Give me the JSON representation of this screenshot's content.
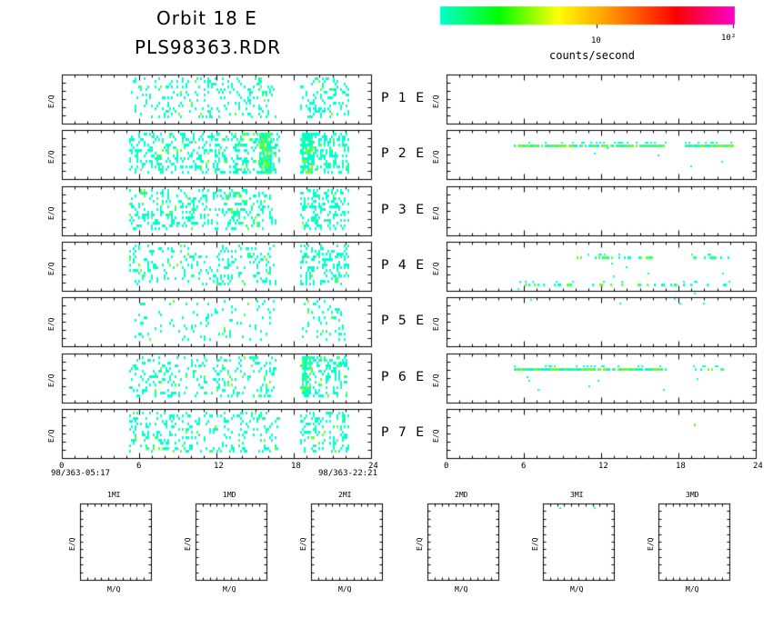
{
  "header": {
    "title": "Orbit 18 E",
    "subtitle": "PLS98363.RDR"
  },
  "colorbar": {
    "tick_labels": [
      "10",
      "10²"
    ],
    "label": "counts/second",
    "stops": [
      "#00ffcc",
      "#00ff00",
      "#ffff00",
      "#ff8800",
      "#ff0000",
      "#ff00cc"
    ]
  },
  "colors": {
    "low": "#00ffcc",
    "mid": "#66ff33",
    "high": "#ccff00"
  },
  "panels": {
    "ylabel": "E/Q",
    "labels": [
      "P 1 E",
      "P 2 E",
      "P 3 E",
      "P 4 E",
      "P 5 E",
      "P 6 E",
      "P 7 E"
    ]
  },
  "time_axis": {
    "ticks": [
      "0",
      "6",
      "12",
      "18",
      "24"
    ],
    "start_label": "98/363-05:17",
    "end_label": "98/363-22:21"
  },
  "mass_panels": {
    "titles": [
      "1MI",
      "1MD",
      "2MI",
      "2MD",
      "3MI",
      "3MD"
    ],
    "xlabel": "M/Q",
    "ylabel": "E/Q"
  },
  "chart_data": [
    {
      "type": "heatmap",
      "name": "left-spectrograms",
      "x_range_hours": [
        0,
        24
      ],
      "rows": [
        {
          "segments": [
            [
              5.2,
              16.5,
              0.3
            ],
            [
              18.5,
              22.2,
              0.45
            ]
          ],
          "highlights": []
        },
        {
          "segments": [
            [
              5.2,
              16.8,
              0.55
            ],
            [
              18.5,
              22.2,
              0.6
            ]
          ],
          "highlights": [
            [
              15.3,
              16.2
            ],
            [
              18.6,
              19.4
            ]
          ]
        },
        {
          "segments": [
            [
              5.2,
              16.5,
              0.45
            ],
            [
              18.5,
              22.2,
              0.55
            ]
          ],
          "highlights": []
        },
        {
          "segments": [
            [
              5.2,
              16.5,
              0.35
            ],
            [
              18.5,
              22.2,
              0.5
            ]
          ],
          "highlights": []
        },
        {
          "segments": [
            [
              5.5,
              16.5,
              0.15
            ],
            [
              18.5,
              22.0,
              0.25
            ]
          ],
          "highlights": []
        },
        {
          "segments": [
            [
              5.2,
              16.5,
              0.35
            ],
            [
              18.5,
              22.2,
              0.55
            ]
          ],
          "highlights": [
            [
              18.6,
              19.3
            ]
          ]
        },
        {
          "segments": [
            [
              5.2,
              16.8,
              0.35
            ],
            [
              18.5,
              22.2,
              0.5
            ]
          ],
          "highlights": []
        }
      ]
    },
    {
      "type": "heatmap",
      "name": "right-spectrograms",
      "x_range_hours": [
        0,
        24
      ],
      "rows": [
        {
          "bands": []
        },
        {
          "bands": [
            [
              5.2,
              17.0,
              0.3,
              0.9
            ],
            [
              18.5,
              22.2,
              0.3,
              1.0
            ]
          ]
        },
        {
          "bands": []
        },
        {
          "bands": [
            [
              9.8,
              16.0,
              0.3,
              0.5
            ],
            [
              19.0,
              22.0,
              0.3,
              0.5
            ],
            [
              5.5,
              22.0,
              0.85,
              0.25
            ]
          ]
        },
        {
          "bands": []
        },
        {
          "bands": [
            [
              5.2,
              17.0,
              0.3,
              0.9
            ],
            [
              19.0,
              21.5,
              0.3,
              0.4
            ]
          ]
        },
        {
          "bands": [
            [
              11.8,
              12.0,
              0.3,
              0.5
            ],
            [
              19.2,
              19.4,
              0.3,
              0.5
            ]
          ]
        }
      ]
    }
  ]
}
